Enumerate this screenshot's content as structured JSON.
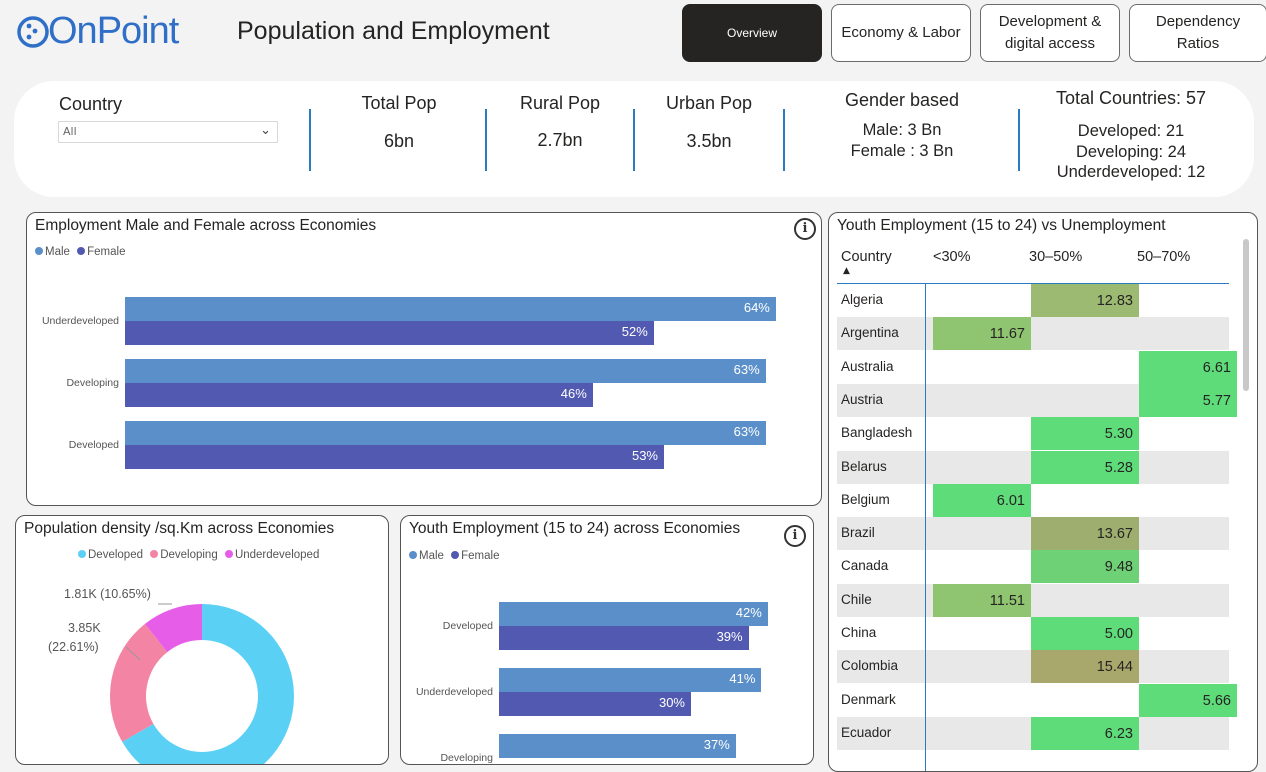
{
  "header": {
    "logo": "OnPoint",
    "title": "Population and Employment",
    "nav": [
      {
        "label": "Overview",
        "active": true
      },
      {
        "label": "Economy & Labor",
        "active": false
      },
      {
        "label": "Development & digital access",
        "active": false
      },
      {
        "label": "Dependency Ratios",
        "active": false
      }
    ]
  },
  "filters": {
    "country_label": "Country",
    "country_value": "All"
  },
  "kpis": {
    "total_pop": {
      "label": "Total Pop",
      "value": "6bn"
    },
    "rural_pop": {
      "label": "Rural Pop",
      "value": "2.7bn"
    },
    "urban_pop": {
      "label": "Urban Pop",
      "value": "3.5bn"
    },
    "gender": {
      "label": "Gender based",
      "male": "Male: 3 Bn",
      "female": "Female : 3 Bn"
    },
    "countries": {
      "label": "Total Countries: 57",
      "developed": "Developed: 21",
      "developing": "Developing: 24",
      "underdeveloped": "Underdeveloped: 12"
    }
  },
  "colors": {
    "male": "#5b8fc9",
    "female": "#5159b0",
    "developed": "#5bd0f5",
    "developing": "#f484a3",
    "underdeveloped": "#e65ee8"
  },
  "charts": {
    "employment": {
      "title": "Employment Male and Female across Economies",
      "legend": [
        "Male",
        "Female"
      ]
    },
    "density": {
      "title": "Population density /sq.Km across Economies",
      "legend": [
        "Developed",
        "Developing",
        "Underdeveloped"
      ],
      "labels": {
        "underdeveloped": "1.81K (10.65%)",
        "developing_value": "3.85K",
        "developing_pct": "(22.61%)"
      }
    },
    "youth": {
      "title": "Youth Employment (15 to 24) across Economies",
      "legend": [
        "Male",
        "Female"
      ]
    }
  },
  "table": {
    "title": "Youth Employment (15 to 24) vs Unemployment",
    "columns": [
      "Country",
      "<30%",
      "30–50%",
      "50–70%"
    ],
    "rows": [
      {
        "country": "Algeria",
        "col": 1,
        "value": "12.83",
        "color": "#9dba72"
      },
      {
        "country": "Argentina",
        "col": 0,
        "value": "11.67",
        "color": "#8fc470"
      },
      {
        "country": "Australia",
        "col": 2,
        "value": "6.61",
        "color": "#5fdc7a"
      },
      {
        "country": "Austria",
        "col": 2,
        "value": "5.77",
        "color": "#5fdc7a"
      },
      {
        "country": "Bangladesh",
        "col": 1,
        "value": "5.30",
        "color": "#5fdc7a"
      },
      {
        "country": "Belarus",
        "col": 1,
        "value": "5.28",
        "color": "#5fdc7a"
      },
      {
        "country": "Belgium",
        "col": 0,
        "value": "6.01",
        "color": "#5fdc7a"
      },
      {
        "country": "Brazil",
        "col": 1,
        "value": "13.67",
        "color": "#9dae6e"
      },
      {
        "country": "Canada",
        "col": 1,
        "value": "9.48",
        "color": "#6fd175"
      },
      {
        "country": "Chile",
        "col": 0,
        "value": "11.51",
        "color": "#8fc470"
      },
      {
        "country": "China",
        "col": 1,
        "value": "5.00",
        "color": "#5fdc7a"
      },
      {
        "country": "Colombia",
        "col": 1,
        "value": "15.44",
        "color": "#a9a86c"
      },
      {
        "country": "Denmark",
        "col": 2,
        "value": "5.66",
        "color": "#5fdc7a"
      },
      {
        "country": "Ecuador",
        "col": 1,
        "value": "6.23",
        "color": "#5fdc7a"
      }
    ]
  },
  "chart_data": [
    {
      "type": "bar",
      "orientation": "horizontal",
      "title": "Employment Male and Female across Economies",
      "categories": [
        "Underdeveloped",
        "Developing",
        "Developed"
      ],
      "series": [
        {
          "name": "Male",
          "values": [
            64,
            63,
            63
          ]
        },
        {
          "name": "Female",
          "values": [
            52,
            46,
            53
          ]
        }
      ],
      "xlim": [
        0,
        100
      ]
    },
    {
      "type": "pie",
      "title": "Population density /sq.Km across Economies",
      "categories": [
        "Developed",
        "Developing",
        "Underdeveloped"
      ],
      "values": [
        11.34,
        3.85,
        1.81
      ],
      "percentages": [
        66.74,
        22.61,
        10.65
      ]
    },
    {
      "type": "bar",
      "orientation": "horizontal",
      "title": "Youth Employment (15 to 24) across Economies",
      "categories": [
        "Developed",
        "Underdeveloped",
        "Developing"
      ],
      "series": [
        {
          "name": "Male",
          "values": [
            42,
            41,
            37
          ]
        },
        {
          "name": "Female",
          "values": [
            39,
            30,
            null
          ]
        }
      ],
      "xlim": [
        0,
        100
      ]
    }
  ]
}
